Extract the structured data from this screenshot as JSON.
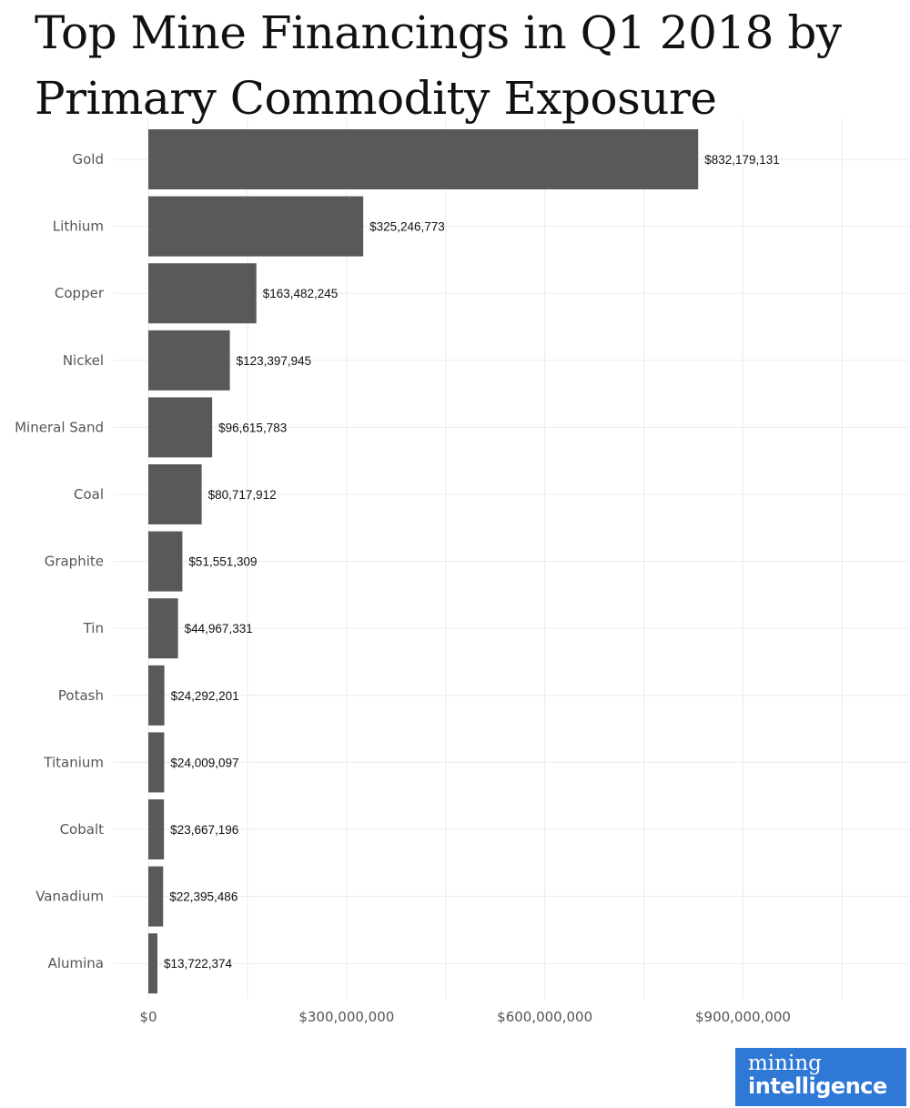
{
  "chart_data": {
    "type": "bar",
    "orientation": "horizontal",
    "title": "Top Mine Financings in Q1 2018 by Primary Commodity Exposure",
    "title_lines": [
      "Top Mine Financings in Q1 2018 by",
      "Primary Commodity Exposure"
    ],
    "categories": [
      "Gold",
      "Lithium",
      "Copper",
      "Nickel",
      "Mineral Sand",
      "Coal",
      "Graphite",
      "Tin",
      "Potash",
      "Titanium",
      "Cobalt",
      "Vanadium",
      "Alumina"
    ],
    "values": [
      832179131,
      325246773,
      163482245,
      123397945,
      96615783,
      80717912,
      51551309,
      44967331,
      24292201,
      24009097,
      23667196,
      22395486,
      13722374
    ],
    "value_labels": [
      "$832,179,131",
      "$325,246,773",
      "$163,482,245",
      "$123,397,945",
      "$96,615,783",
      "$80,717,912",
      "$51,551,309",
      "$44,967,331",
      "$24,292,201",
      "$24,009,097",
      "$23,667,196",
      "$22,395,486",
      "$13,722,374"
    ],
    "x_ticks": [
      0,
      300000000,
      600000000,
      900000000
    ],
    "x_tick_labels": [
      "$0",
      "$300,000,000",
      "$600,000,000",
      "$900,000,000"
    ],
    "xlim": [
      0,
      1150000000
    ],
    "xlabel": "",
    "ylabel": "",
    "grid": true,
    "bar_color": "#595959"
  },
  "logo": {
    "line1": "mining",
    "line2": "intelligence",
    "color": "#2f78d6"
  }
}
